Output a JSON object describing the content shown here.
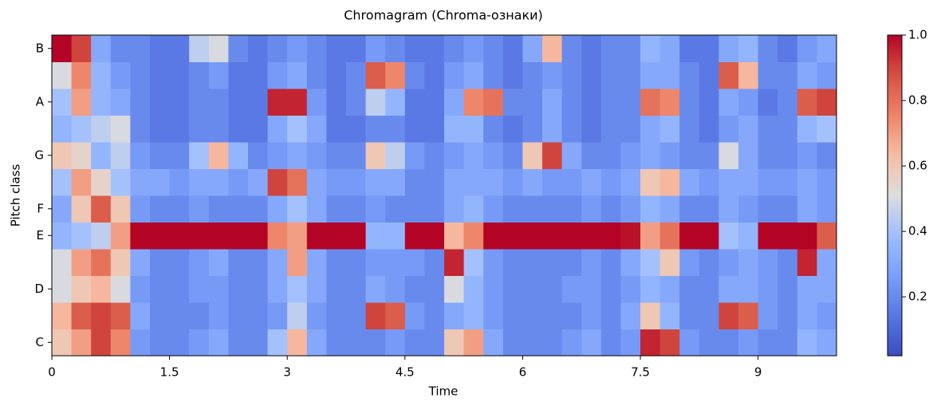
{
  "chart_data": {
    "type": "heatmap",
    "title": "Chromagram (Chroma-ознаки)",
    "xlabel": "Time",
    "ylabel": "Pitch class",
    "colormap": "coolwarm",
    "x": [
      0,
      0.25,
      0.5,
      0.75,
      1,
      1.25,
      1.5,
      1.75,
      2,
      2.25,
      2.5,
      2.75,
      3,
      3.25,
      3.5,
      3.75,
      4,
      4.25,
      4.5,
      4.75,
      5,
      5.25,
      5.5,
      5.75,
      6,
      6.25,
      6.5,
      6.75,
      7,
      7.25,
      7.5,
      7.75,
      8,
      8.25,
      8.5,
      8.75,
      9,
      9.25,
      9.5,
      9.75,
      10
    ],
    "categories": [
      "C",
      null,
      "D",
      null,
      "E",
      "F",
      null,
      "G",
      null,
      "A",
      null,
      "B"
    ],
    "z": [
      [
        0.6,
        0.7,
        0.9,
        0.75,
        0.25,
        0.2,
        0.2,
        0.25,
        0.3,
        0.2,
        0.2,
        0.4,
        0.65,
        0.3,
        0.2,
        0.2,
        0.2,
        0.25,
        0.2,
        0.2,
        0.6,
        0.7,
        0.3,
        0.2,
        0.2,
        0.2,
        0.25,
        0.3,
        0.2,
        0.25,
        0.95,
        0.9,
        0.25,
        0.2,
        0.2,
        0.25,
        0.2,
        0.2,
        0.35,
        0.3
      ],
      [
        0.65,
        0.85,
        0.9,
        0.85,
        0.3,
        0.2,
        0.2,
        0.2,
        0.25,
        0.2,
        0.2,
        0.25,
        0.45,
        0.25,
        0.2,
        0.2,
        0.9,
        0.85,
        0.25,
        0.2,
        0.3,
        0.35,
        0.25,
        0.2,
        0.2,
        0.2,
        0.2,
        0.25,
        0.2,
        0.3,
        0.6,
        0.35,
        0.2,
        0.2,
        0.9,
        0.85,
        0.25,
        0.2,
        0.3,
        0.25
      ],
      [
        0.5,
        0.6,
        0.65,
        0.5,
        0.25,
        0.2,
        0.2,
        0.25,
        0.25,
        0.2,
        0.2,
        0.3,
        0.4,
        0.3,
        0.2,
        0.2,
        0.3,
        0.25,
        0.2,
        0.2,
        0.5,
        0.35,
        0.25,
        0.2,
        0.2,
        0.2,
        0.25,
        0.25,
        0.2,
        0.25,
        0.35,
        0.3,
        0.2,
        0.2,
        0.3,
        0.3,
        0.25,
        0.2,
        0.3,
        0.3
      ],
      [
        0.5,
        0.7,
        0.8,
        0.6,
        0.3,
        0.2,
        0.2,
        0.25,
        0.3,
        0.2,
        0.2,
        0.3,
        0.7,
        0.3,
        0.2,
        0.2,
        0.25,
        0.25,
        0.25,
        0.2,
        0.95,
        0.4,
        0.25,
        0.2,
        0.2,
        0.2,
        0.2,
        0.25,
        0.2,
        0.3,
        0.4,
        0.6,
        0.25,
        0.2,
        0.25,
        0.3,
        0.25,
        0.2,
        0.95,
        0.3
      ],
      [
        0.35,
        0.4,
        0.45,
        0.7,
        1.0,
        1.0,
        1.0,
        1.0,
        1.0,
        1.0,
        1.0,
        0.75,
        0.7,
        1.0,
        1.0,
        1.0,
        0.35,
        0.35,
        1.0,
        1.0,
        0.65,
        0.75,
        1.0,
        1.0,
        1.0,
        1.0,
        1.0,
        1.0,
        1.0,
        0.98,
        0.7,
        0.8,
        1.0,
        1.0,
        0.4,
        0.35,
        1.0,
        1.0,
        1.0,
        0.85
      ],
      [
        0.3,
        0.6,
        0.85,
        0.6,
        0.25,
        0.2,
        0.2,
        0.25,
        0.2,
        0.2,
        0.2,
        0.3,
        0.4,
        0.3,
        0.2,
        0.2,
        0.25,
        0.2,
        0.2,
        0.2,
        0.3,
        0.35,
        0.25,
        0.2,
        0.2,
        0.2,
        0.2,
        0.25,
        0.2,
        0.25,
        0.35,
        0.3,
        0.2,
        0.2,
        0.3,
        0.25,
        0.2,
        0.2,
        0.3,
        0.25
      ],
      [
        0.4,
        0.7,
        0.55,
        0.4,
        0.3,
        0.3,
        0.25,
        0.3,
        0.3,
        0.25,
        0.3,
        0.9,
        0.8,
        0.3,
        0.25,
        0.25,
        0.3,
        0.3,
        0.2,
        0.2,
        0.3,
        0.3,
        0.3,
        0.25,
        0.3,
        0.25,
        0.25,
        0.3,
        0.25,
        0.3,
        0.6,
        0.65,
        0.3,
        0.25,
        0.3,
        0.3,
        0.25,
        0.25,
        0.3,
        0.25
      ],
      [
        0.6,
        0.55,
        0.35,
        0.45,
        0.25,
        0.2,
        0.2,
        0.4,
        0.65,
        0.35,
        0.2,
        0.25,
        0.3,
        0.25,
        0.2,
        0.2,
        0.6,
        0.45,
        0.25,
        0.2,
        0.25,
        0.3,
        0.25,
        0.2,
        0.6,
        0.9,
        0.3,
        0.2,
        0.2,
        0.25,
        0.3,
        0.25,
        0.2,
        0.2,
        0.5,
        0.3,
        0.2,
        0.2,
        0.25,
        0.2
      ],
      [
        0.35,
        0.4,
        0.45,
        0.5,
        0.2,
        0.15,
        0.15,
        0.2,
        0.2,
        0.15,
        0.15,
        0.3,
        0.4,
        0.3,
        0.15,
        0.15,
        0.2,
        0.2,
        0.15,
        0.15,
        0.35,
        0.35,
        0.2,
        0.15,
        0.2,
        0.3,
        0.2,
        0.15,
        0.2,
        0.2,
        0.3,
        0.35,
        0.2,
        0.15,
        0.25,
        0.3,
        0.2,
        0.2,
        0.35,
        0.4
      ],
      [
        0.4,
        0.7,
        0.35,
        0.3,
        0.2,
        0.15,
        0.15,
        0.2,
        0.2,
        0.15,
        0.15,
        0.95,
        0.95,
        0.25,
        0.15,
        0.2,
        0.45,
        0.35,
        0.15,
        0.15,
        0.3,
        0.75,
        0.8,
        0.2,
        0.2,
        0.3,
        0.2,
        0.15,
        0.2,
        0.2,
        0.8,
        0.75,
        0.2,
        0.15,
        0.3,
        0.25,
        0.15,
        0.2,
        0.85,
        0.9
      ],
      [
        0.5,
        0.75,
        0.35,
        0.25,
        0.2,
        0.15,
        0.15,
        0.2,
        0.25,
        0.15,
        0.15,
        0.25,
        0.3,
        0.2,
        0.15,
        0.2,
        0.85,
        0.75,
        0.2,
        0.15,
        0.25,
        0.3,
        0.2,
        0.15,
        0.2,
        0.25,
        0.2,
        0.15,
        0.2,
        0.2,
        0.3,
        0.3,
        0.2,
        0.15,
        0.85,
        0.65,
        0.2,
        0.2,
        0.3,
        0.25
      ],
      [
        1.0,
        0.9,
        0.3,
        0.2,
        0.2,
        0.15,
        0.15,
        0.45,
        0.5,
        0.2,
        0.15,
        0.2,
        0.25,
        0.2,
        0.15,
        0.15,
        0.25,
        0.2,
        0.15,
        0.15,
        0.2,
        0.25,
        0.2,
        0.15,
        0.3,
        0.65,
        0.2,
        0.15,
        0.2,
        0.2,
        0.35,
        0.3,
        0.15,
        0.15,
        0.3,
        0.35,
        0.2,
        0.15,
        0.25,
        0.3
      ]
    ],
    "xlim": [
      0,
      10
    ],
    "xticks": [
      0,
      1.5,
      3,
      4.5,
      6,
      7.5,
      9
    ],
    "colorbar": {
      "lim": [
        0.02,
        1
      ],
      "ticks": [
        0.2,
        0.4,
        0.6,
        0.8,
        {
          "value": 1,
          "label": "1.0"
        }
      ]
    }
  }
}
